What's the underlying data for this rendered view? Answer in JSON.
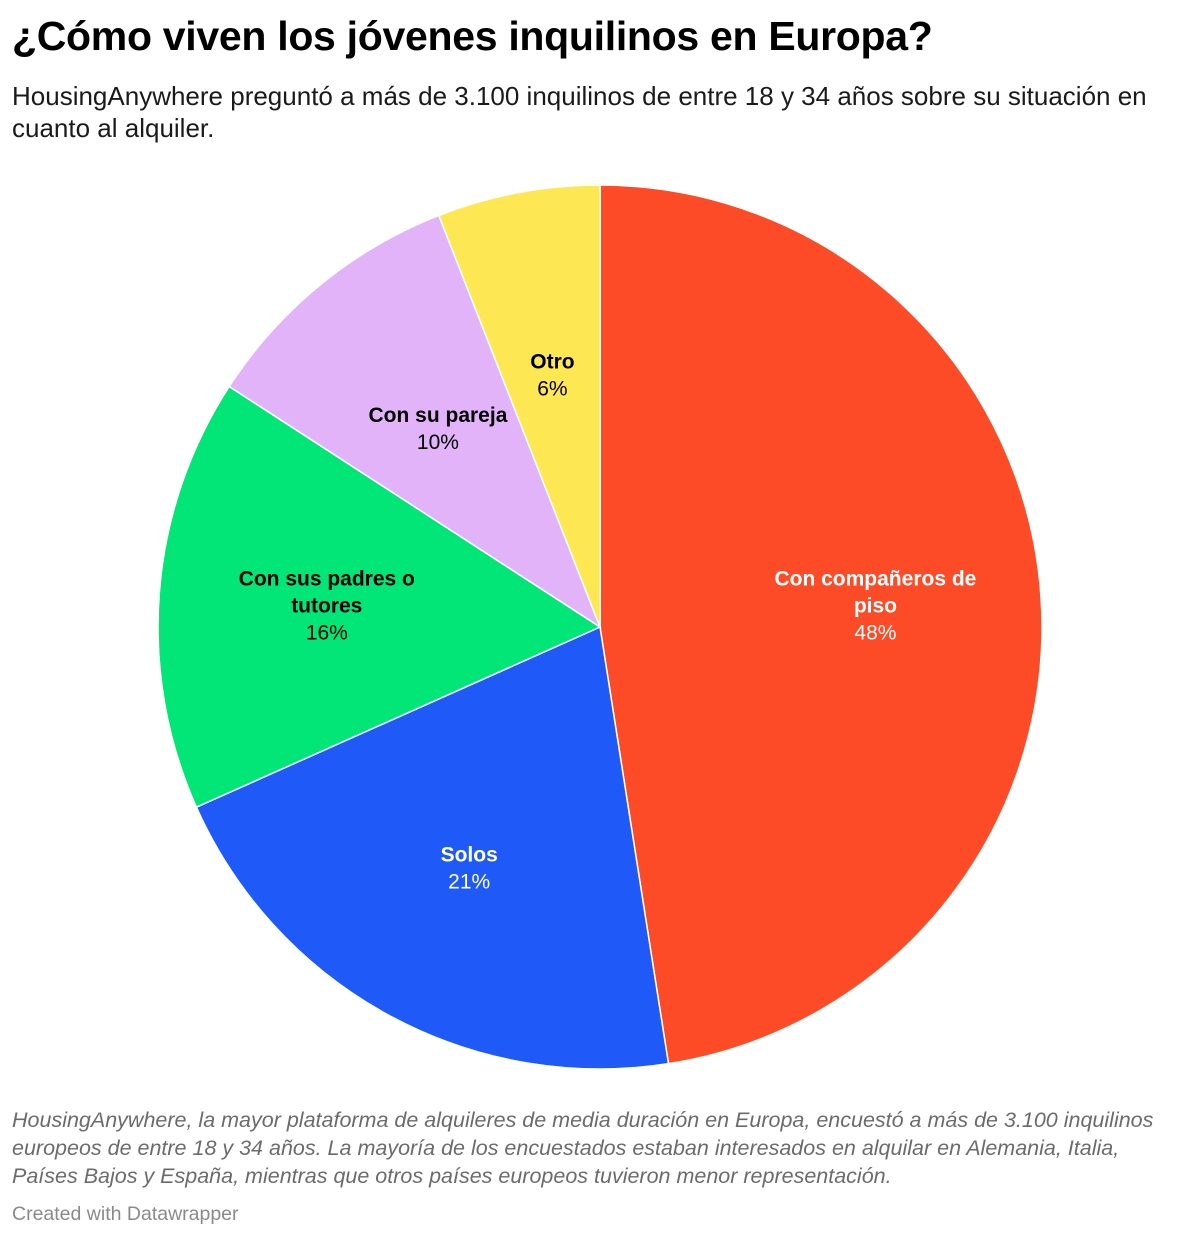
{
  "title": "¿Cómo viven los jóvenes inquilinos en Europa?",
  "subtitle": "HousingAnywhere preguntó a más de 3.100 inquilinos de entre 18 y 34 años sobre su situación en cuanto al alquiler.",
  "notes": "HousingAnywhere, la mayor plataforma de alquileres de media duración en Europa, encuestó a más de 3.100 inquilinos europeos de entre 18 y 34 años. La mayoría de los encuestados estaban interesados en alquilar en Alemania, Italia, Países Bajos y España, mientras que otros países europeos tuvieron menor representación.",
  "credit": "Created with Datawrapper",
  "chart_data": {
    "type": "pie",
    "title": "¿Cómo viven los jóvenes inquilinos en Europa?",
    "categories": [
      "Con compañeros de piso",
      "Solos",
      "Con sus padres o tutores",
      "Con su pareja",
      "Otro"
    ],
    "values": [
      48,
      21,
      16,
      10,
      6
    ],
    "value_labels": [
      "48%",
      "21%",
      "16%",
      "10%",
      "6%"
    ],
    "label_lines": [
      [
        "Con compañeros de",
        "piso"
      ],
      [
        "Solos"
      ],
      [
        "Con sus padres o",
        "tutores"
      ],
      [
        "Con su pareja"
      ],
      [
        "Otro"
      ]
    ],
    "colors": [
      "#fd4a27",
      "#1f5af9",
      "#02e677",
      "#e2b3f9",
      "#fde853"
    ],
    "label_colors": [
      "#ffffff",
      "#ffffff",
      "#000000",
      "#000000",
      "#000000"
    ],
    "start": "12 o'clock",
    "direction": "clockwise"
  }
}
